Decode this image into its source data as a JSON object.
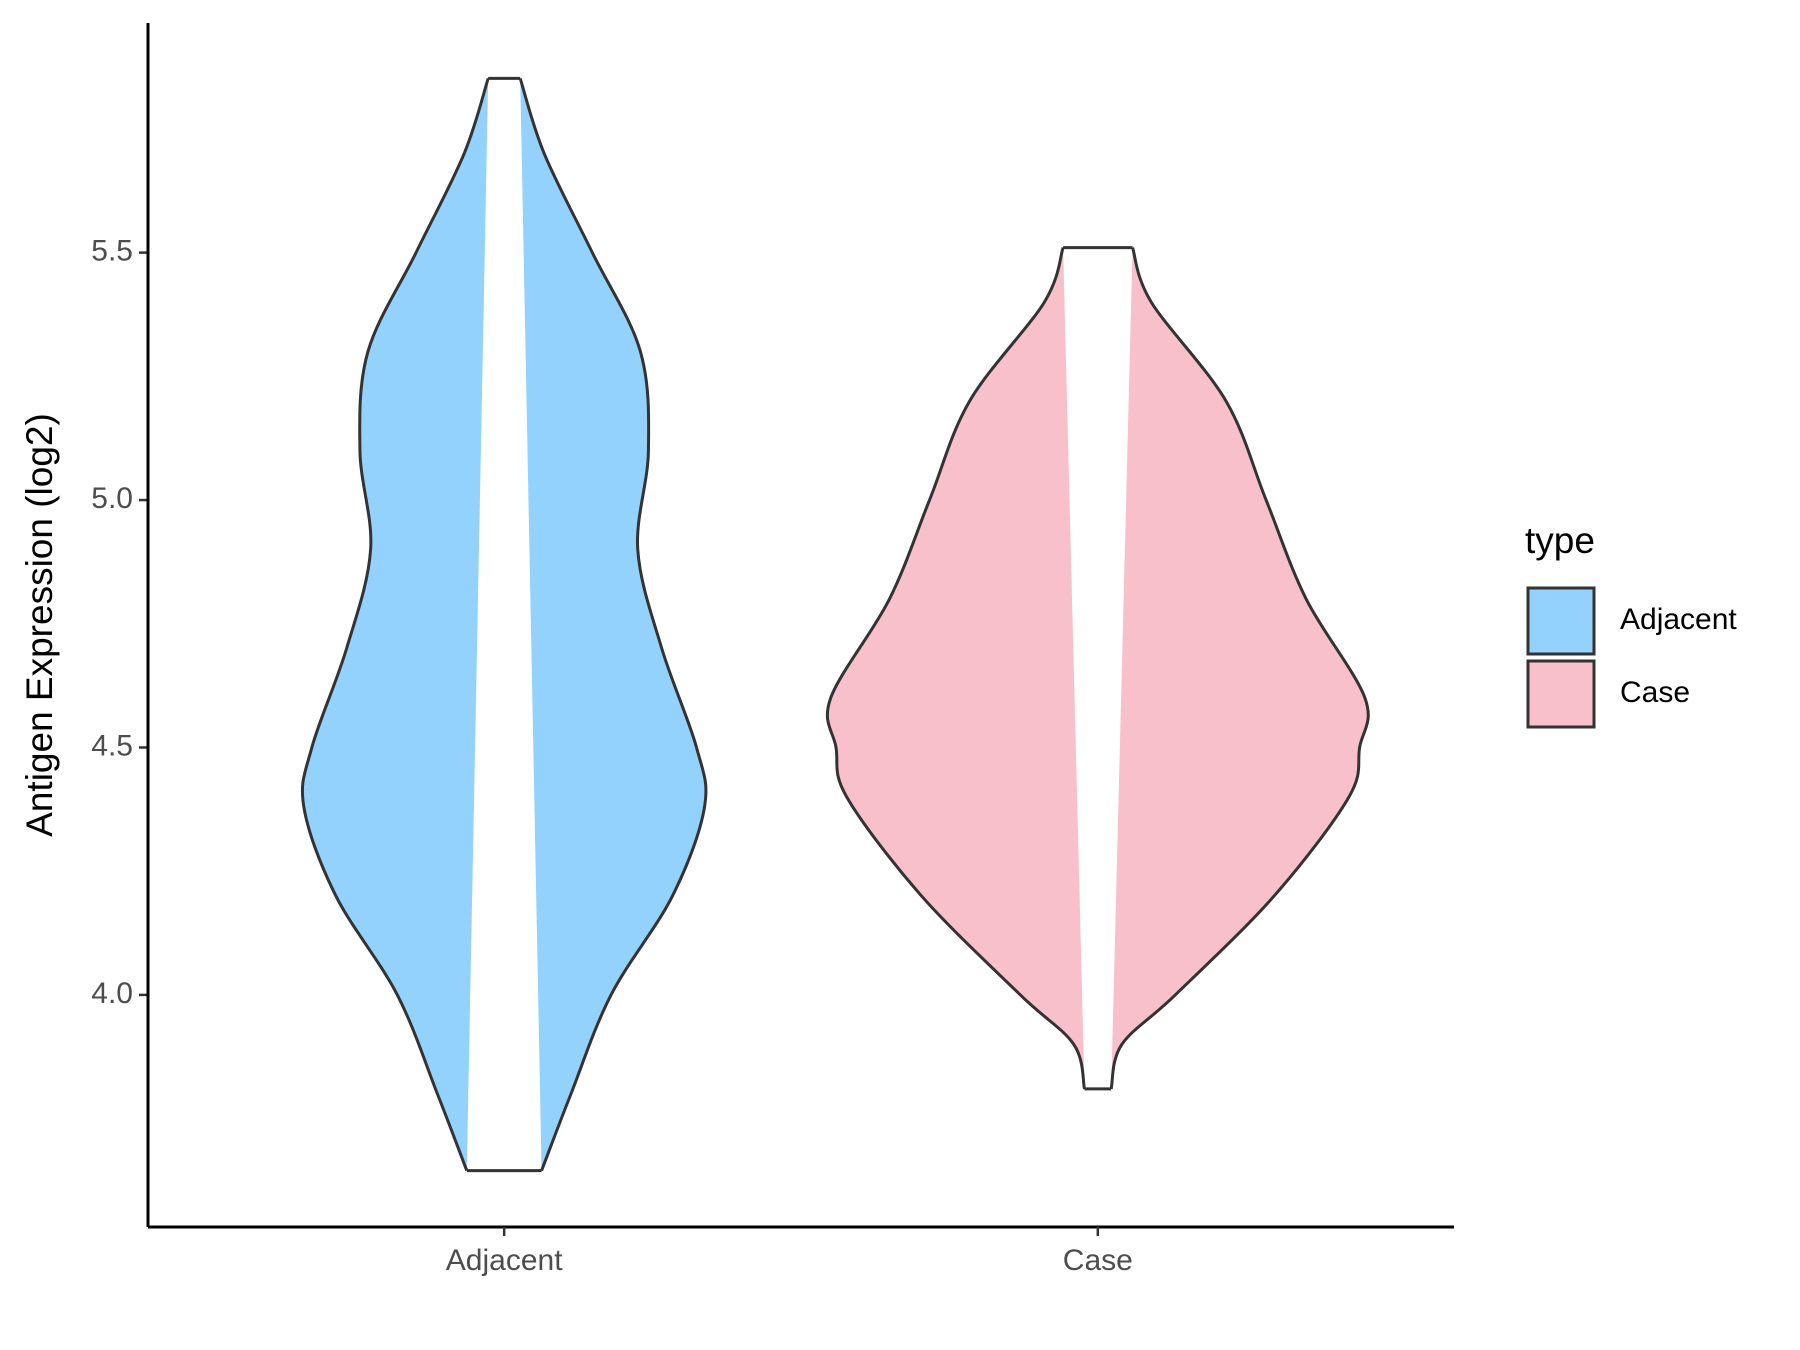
{
  "chart_data": {
    "type": "violin",
    "y_label": "Antigen Expression (log2)",
    "categories": [
      "Adjacent",
      "Case"
    ],
    "legend_title": "type",
    "legend_position": "right",
    "ylim": [
      3.531,
      5.964
    ],
    "yticks": [
      {
        "value": 4,
        "label": "4.0"
      },
      4.5,
      {
        "value": 5,
        "label": "5.0"
      },
      5.5
    ],
    "series": [
      {
        "name": "Adjacent",
        "color": "#92d2fd",
        "y": [
          3.645,
          3.8,
          4.0,
          4.2,
          4.38,
          4.5,
          4.7,
          4.9,
          5.1,
          5.3,
          5.5,
          5.7,
          5.852
        ],
        "density": [
          0.14,
          0.25,
          0.4,
          0.63,
          0.75,
          0.72,
          0.59,
          0.5,
          0.54,
          0.51,
          0.33,
          0.15,
          0.06
        ]
      },
      {
        "name": "Case",
        "color": "#f7c0cb",
        "y": [
          3.81,
          3.9,
          4.0,
          4.2,
          4.4,
          4.5,
          4.6,
          4.8,
          5.0,
          5.2,
          5.4,
          5.51
        ],
        "density": [
          0.05,
          0.09,
          0.29,
          0.66,
          0.94,
          0.98,
          1.0,
          0.78,
          0.63,
          0.48,
          0.2,
          0.13
        ]
      }
    ]
  }
}
